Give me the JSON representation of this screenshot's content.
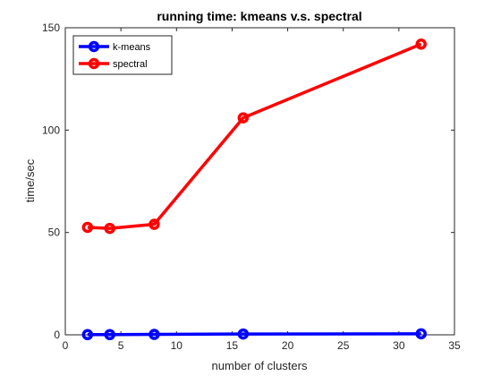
{
  "chart_data": {
    "type": "line",
    "title": "running time: kmeans v.s. spectral",
    "xlabel": "number of clusters",
    "ylabel": "time/sec",
    "xlim": [
      0,
      35
    ],
    "ylim": [
      0,
      150
    ],
    "xticks": [
      0,
      5,
      10,
      15,
      20,
      25,
      30,
      35
    ],
    "yticks": [
      0,
      50,
      100,
      150
    ],
    "grid": false,
    "legend_position": "top-left",
    "series": [
      {
        "name": "k-means",
        "color": "#0000ff",
        "marker": "circle",
        "x": [
          2,
          4,
          8,
          16,
          32
        ],
        "y": [
          0.1,
          0.1,
          0.2,
          0.4,
          0.5
        ]
      },
      {
        "name": "spectral",
        "color": "#ff0000",
        "marker": "circle",
        "x": [
          2,
          4,
          8,
          16,
          32
        ],
        "y": [
          52.5,
          52,
          54,
          106,
          142
        ]
      }
    ]
  }
}
